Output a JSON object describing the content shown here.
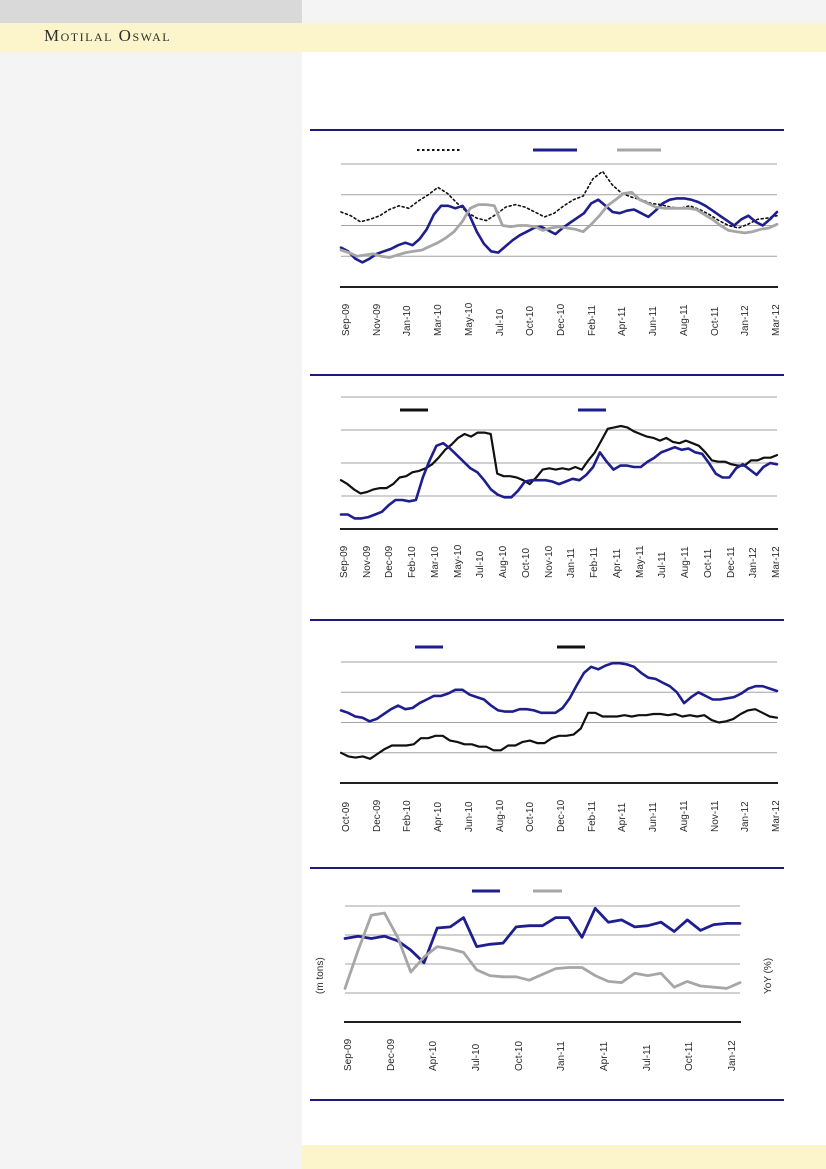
{
  "header": {
    "brand": "Motilal Oswal"
  },
  "colors": {
    "navy": "#1e1e8f",
    "black": "#111111",
    "gray": "#a6a6a6",
    "separator": "#1c1c80",
    "gridline": "#a3a3a3",
    "band_yellow": "#fcf4ca",
    "sidebar_gray": "#f4f4f4",
    "topbar_gray": "#d9d9d9"
  },
  "chart_data": [
    {
      "type": "line",
      "title": "",
      "x_labels": [
        "Sep-09",
        "Nov-09",
        "Jan-10",
        "Mar-10",
        "May-10",
        "Jul-10",
        "Oct-10",
        "Dec-10",
        "Feb-11",
        "Apr-11",
        "Jun-11",
        "Aug-11",
        "Oct-11",
        "Jan-12",
        "Mar-12"
      ],
      "ylabel": "",
      "ylim": [
        0,
        100
      ],
      "y_units": "percent of plot height (no y-axis tick labels visible in image)",
      "grid": true,
      "legend": {
        "position": "top",
        "labels": [
          "",
          "",
          ""
        ]
      },
      "series": [
        {
          "name": "series-dotted-black",
          "style": "dotted",
          "color": "#111111",
          "stroke_width": 1.6,
          "values": [
            61,
            58,
            53,
            55,
            58,
            63,
            66,
            64,
            70,
            75,
            81,
            76,
            68,
            61,
            56,
            54,
            59,
            65,
            67,
            65,
            61,
            57,
            60,
            66,
            71,
            74,
            88,
            94,
            83,
            76,
            73,
            71,
            68,
            67,
            65,
            64,
            66,
            63,
            59,
            54,
            50,
            48,
            51,
            55,
            56,
            58
          ]
        },
        {
          "name": "series-navy",
          "style": "solid",
          "color": "#1e1e8f",
          "stroke_width": 2.6,
          "values": [
            32,
            29,
            23,
            20,
            23,
            27,
            29,
            31,
            34,
            36,
            34,
            39,
            47,
            59,
            66,
            66,
            64,
            66,
            58,
            45,
            35,
            29,
            28,
            33,
            38,
            42,
            45,
            48,
            49,
            46,
            43,
            48,
            52,
            56,
            60,
            68,
            71,
            66,
            61,
            60,
            62,
            63,
            60,
            57,
            62,
            68,
            71,
            72,
            72,
            71,
            69,
            66,
            62,
            58,
            54,
            50,
            55,
            58,
            53,
            50,
            55,
            61
          ]
        },
        {
          "name": "series-gray",
          "style": "solid",
          "color": "#a6a6a6",
          "stroke_width": 2.8,
          "values": [
            30,
            28,
            25,
            26,
            27,
            25,
            24,
            26,
            28,
            29,
            30,
            33,
            36,
            40,
            45,
            53,
            64,
            67,
            67,
            66,
            50,
            49,
            50,
            50,
            49,
            46,
            48,
            49,
            48,
            47,
            45,
            51,
            58,
            66,
            71,
            76,
            77,
            71,
            68,
            65,
            64,
            64,
            64,
            64,
            63,
            59,
            55,
            50,
            46,
            45,
            44,
            45,
            47,
            48,
            51
          ]
        }
      ]
    },
    {
      "type": "line",
      "title": "",
      "x_labels": [
        "Sep-09",
        "Nov-09",
        "Dec-09",
        "Feb-10",
        "Mar-10",
        "May-10",
        "Jul-10",
        "Aug-10",
        "Oct-10",
        "Nov-10",
        "Jan-11",
        "Feb-11",
        "Apr-11",
        "May-11",
        "Jul-11",
        "Aug-11",
        "Oct-11",
        "Dec-11",
        "Jan-12",
        "Mar-12"
      ],
      "ylabel": "",
      "ylim": [
        0,
        100
      ],
      "y_units": "percent of plot height (no y-axis tick labels visible in image)",
      "grid": true,
      "legend": {
        "position": "top",
        "labels": [
          "",
          ""
        ]
      },
      "series": [
        {
          "name": "series-black",
          "style": "solid",
          "color": "#111111",
          "stroke_width": 2.2,
          "values": [
            37,
            34,
            30,
            27,
            28,
            30,
            31,
            31,
            34,
            39,
            40,
            43,
            44,
            46,
            49,
            54,
            60,
            64,
            69,
            72,
            70,
            73,
            73,
            72,
            42,
            40,
            40,
            39,
            37,
            34,
            39,
            45,
            46,
            45,
            46,
            45,
            47,
            45,
            52,
            58,
            67,
            76,
            77,
            78,
            77,
            74,
            72,
            70,
            69,
            67,
            69,
            66,
            65,
            67,
            65,
            63,
            58,
            52,
            51,
            51,
            49,
            48,
            48,
            52,
            52,
            54,
            54,
            56
          ]
        },
        {
          "name": "series-navy",
          "style": "solid",
          "color": "#1e1e8f",
          "stroke_width": 2.6,
          "values": [
            11,
            11,
            8,
            8,
            9,
            11,
            13,
            18,
            22,
            22,
            21,
            22,
            39,
            52,
            63,
            65,
            61,
            56,
            51,
            46,
            43,
            37,
            30,
            26,
            24,
            24,
            29,
            36,
            37,
            37,
            37,
            36,
            34,
            36,
            38,
            37,
            41,
            47,
            58,
            51,
            45,
            48,
            48,
            47,
            47,
            51,
            54,
            58,
            60,
            62,
            60,
            61,
            58,
            57,
            50,
            42,
            39,
            39,
            46,
            49,
            45,
            41,
            47,
            50,
            49
          ]
        }
      ]
    },
    {
      "type": "line",
      "title": "",
      "x_labels": [
        "Oct-09",
        "Dec-09",
        "Feb-10",
        "Apr-10",
        "Jun-10",
        "Aug-10",
        "Oct-10",
        "Dec-10",
        "Feb-11",
        "Apr-11",
        "Jun-11",
        "Aug-11",
        "Nov-11",
        "Jan-12",
        "Mar-12"
      ],
      "ylabel": "",
      "ylim": [
        0,
        100
      ],
      "y_units": "percent of plot height (no y-axis tick labels visible in image)",
      "grid": true,
      "legend": {
        "position": "top",
        "labels": [
          "",
          ""
        ]
      },
      "series": [
        {
          "name": "series-navy",
          "style": "solid",
          "color": "#1e1e8f",
          "stroke_width": 2.6,
          "values": [
            60,
            58,
            55,
            54,
            51,
            53,
            57,
            61,
            64,
            61,
            62,
            66,
            69,
            72,
            72,
            74,
            77,
            77,
            73,
            71,
            69,
            64,
            60,
            59,
            59,
            61,
            61,
            60,
            58,
            58,
            58,
            62,
            70,
            81,
            91,
            96,
            94,
            97,
            99,
            99,
            98,
            96,
            91,
            87,
            86,
            83,
            80,
            75,
            66,
            71,
            75,
            72,
            69,
            69,
            70,
            71,
            74,
            78,
            80,
            80,
            78,
            76
          ]
        },
        {
          "name": "series-black",
          "style": "solid",
          "color": "#111111",
          "stroke_width": 2.2,
          "values": [
            25,
            22,
            21,
            22,
            20,
            24,
            28,
            31,
            31,
            31,
            32,
            37,
            37,
            39,
            39,
            35,
            34,
            32,
            32,
            30,
            30,
            27,
            27,
            31,
            31,
            34,
            35,
            33,
            33,
            37,
            39,
            39,
            40,
            45,
            58,
            58,
            55,
            55,
            55,
            56,
            55,
            56,
            56,
            57,
            57,
            56,
            57,
            55,
            56,
            55,
            56,
            52,
            50,
            51,
            53,
            57,
            60,
            61,
            58,
            55,
            54
          ]
        }
      ]
    },
    {
      "type": "line",
      "title": "",
      "x_labels": [
        "Sep-09",
        "Dec-09",
        "Apr-10",
        "Jul-10",
        "Oct-10",
        "Jan-11",
        "Apr-11",
        "Jul-11",
        "Oct-11",
        "Jan-12"
      ],
      "axis_labels": {
        "left": "(m tons)",
        "right": "YoY (%)"
      },
      "ylim": [
        0,
        100
      ],
      "y_units": "percent of plot height (no y-axis tick labels visible in image)",
      "grid": true,
      "legend": {
        "position": "top",
        "labels": [
          "",
          ""
        ]
      },
      "series": [
        {
          "name": "series-navy",
          "style": "solid",
          "color": "#1e1e8f",
          "stroke_width": 2.8,
          "values": [
            72,
            74,
            72,
            74,
            70,
            62,
            51,
            81,
            82,
            90,
            65,
            67,
            68,
            82,
            83,
            83,
            90,
            90,
            73,
            98,
            86,
            88,
            82,
            83,
            86,
            78,
            88,
            79,
            84,
            85,
            85
          ]
        },
        {
          "name": "series-gray",
          "style": "solid",
          "color": "#a6a6a6",
          "stroke_width": 2.8,
          "values": [
            29,
            62,
            92,
            94,
            73,
            43,
            56,
            65,
            63,
            60,
            45,
            40,
            39,
            39,
            36,
            41,
            46,
            47,
            47,
            40,
            35,
            34,
            42,
            40,
            42,
            30,
            35,
            31,
            30,
            29,
            34
          ]
        }
      ]
    }
  ]
}
